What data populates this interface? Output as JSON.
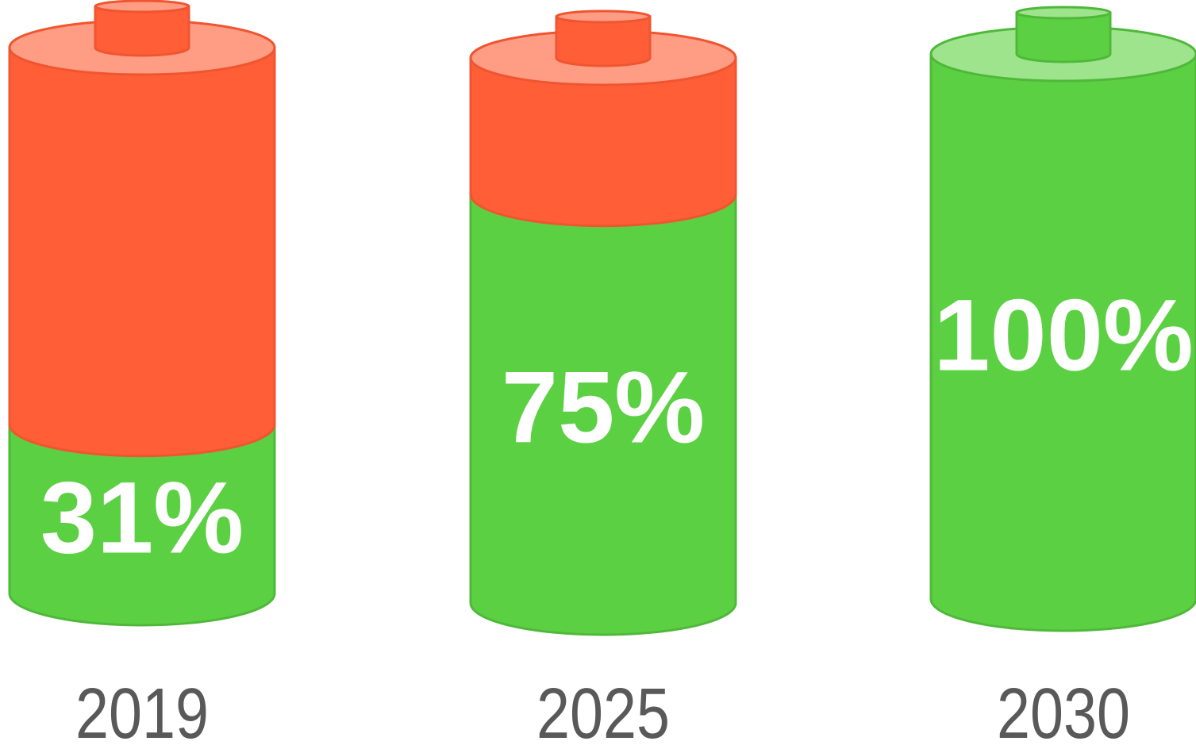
{
  "chart_data": {
    "type": "bar",
    "categories": [
      "2019",
      "2025",
      "2030"
    ],
    "values": [
      31,
      75,
      100
    ],
    "value_labels": [
      "31%",
      "75%",
      "100%"
    ],
    "unit": "%",
    "ylim": [
      0,
      100
    ],
    "style": "battery",
    "colors": {
      "filled": "#5cd043",
      "filled_edge": "#4fb83a",
      "filled_top": "#9ee48d",
      "empty": "#ff5e37",
      "empty_edge": "#ef5530",
      "empty_top": "#ff9c84",
      "label": "#ffffff",
      "category_label": "#595959"
    }
  }
}
